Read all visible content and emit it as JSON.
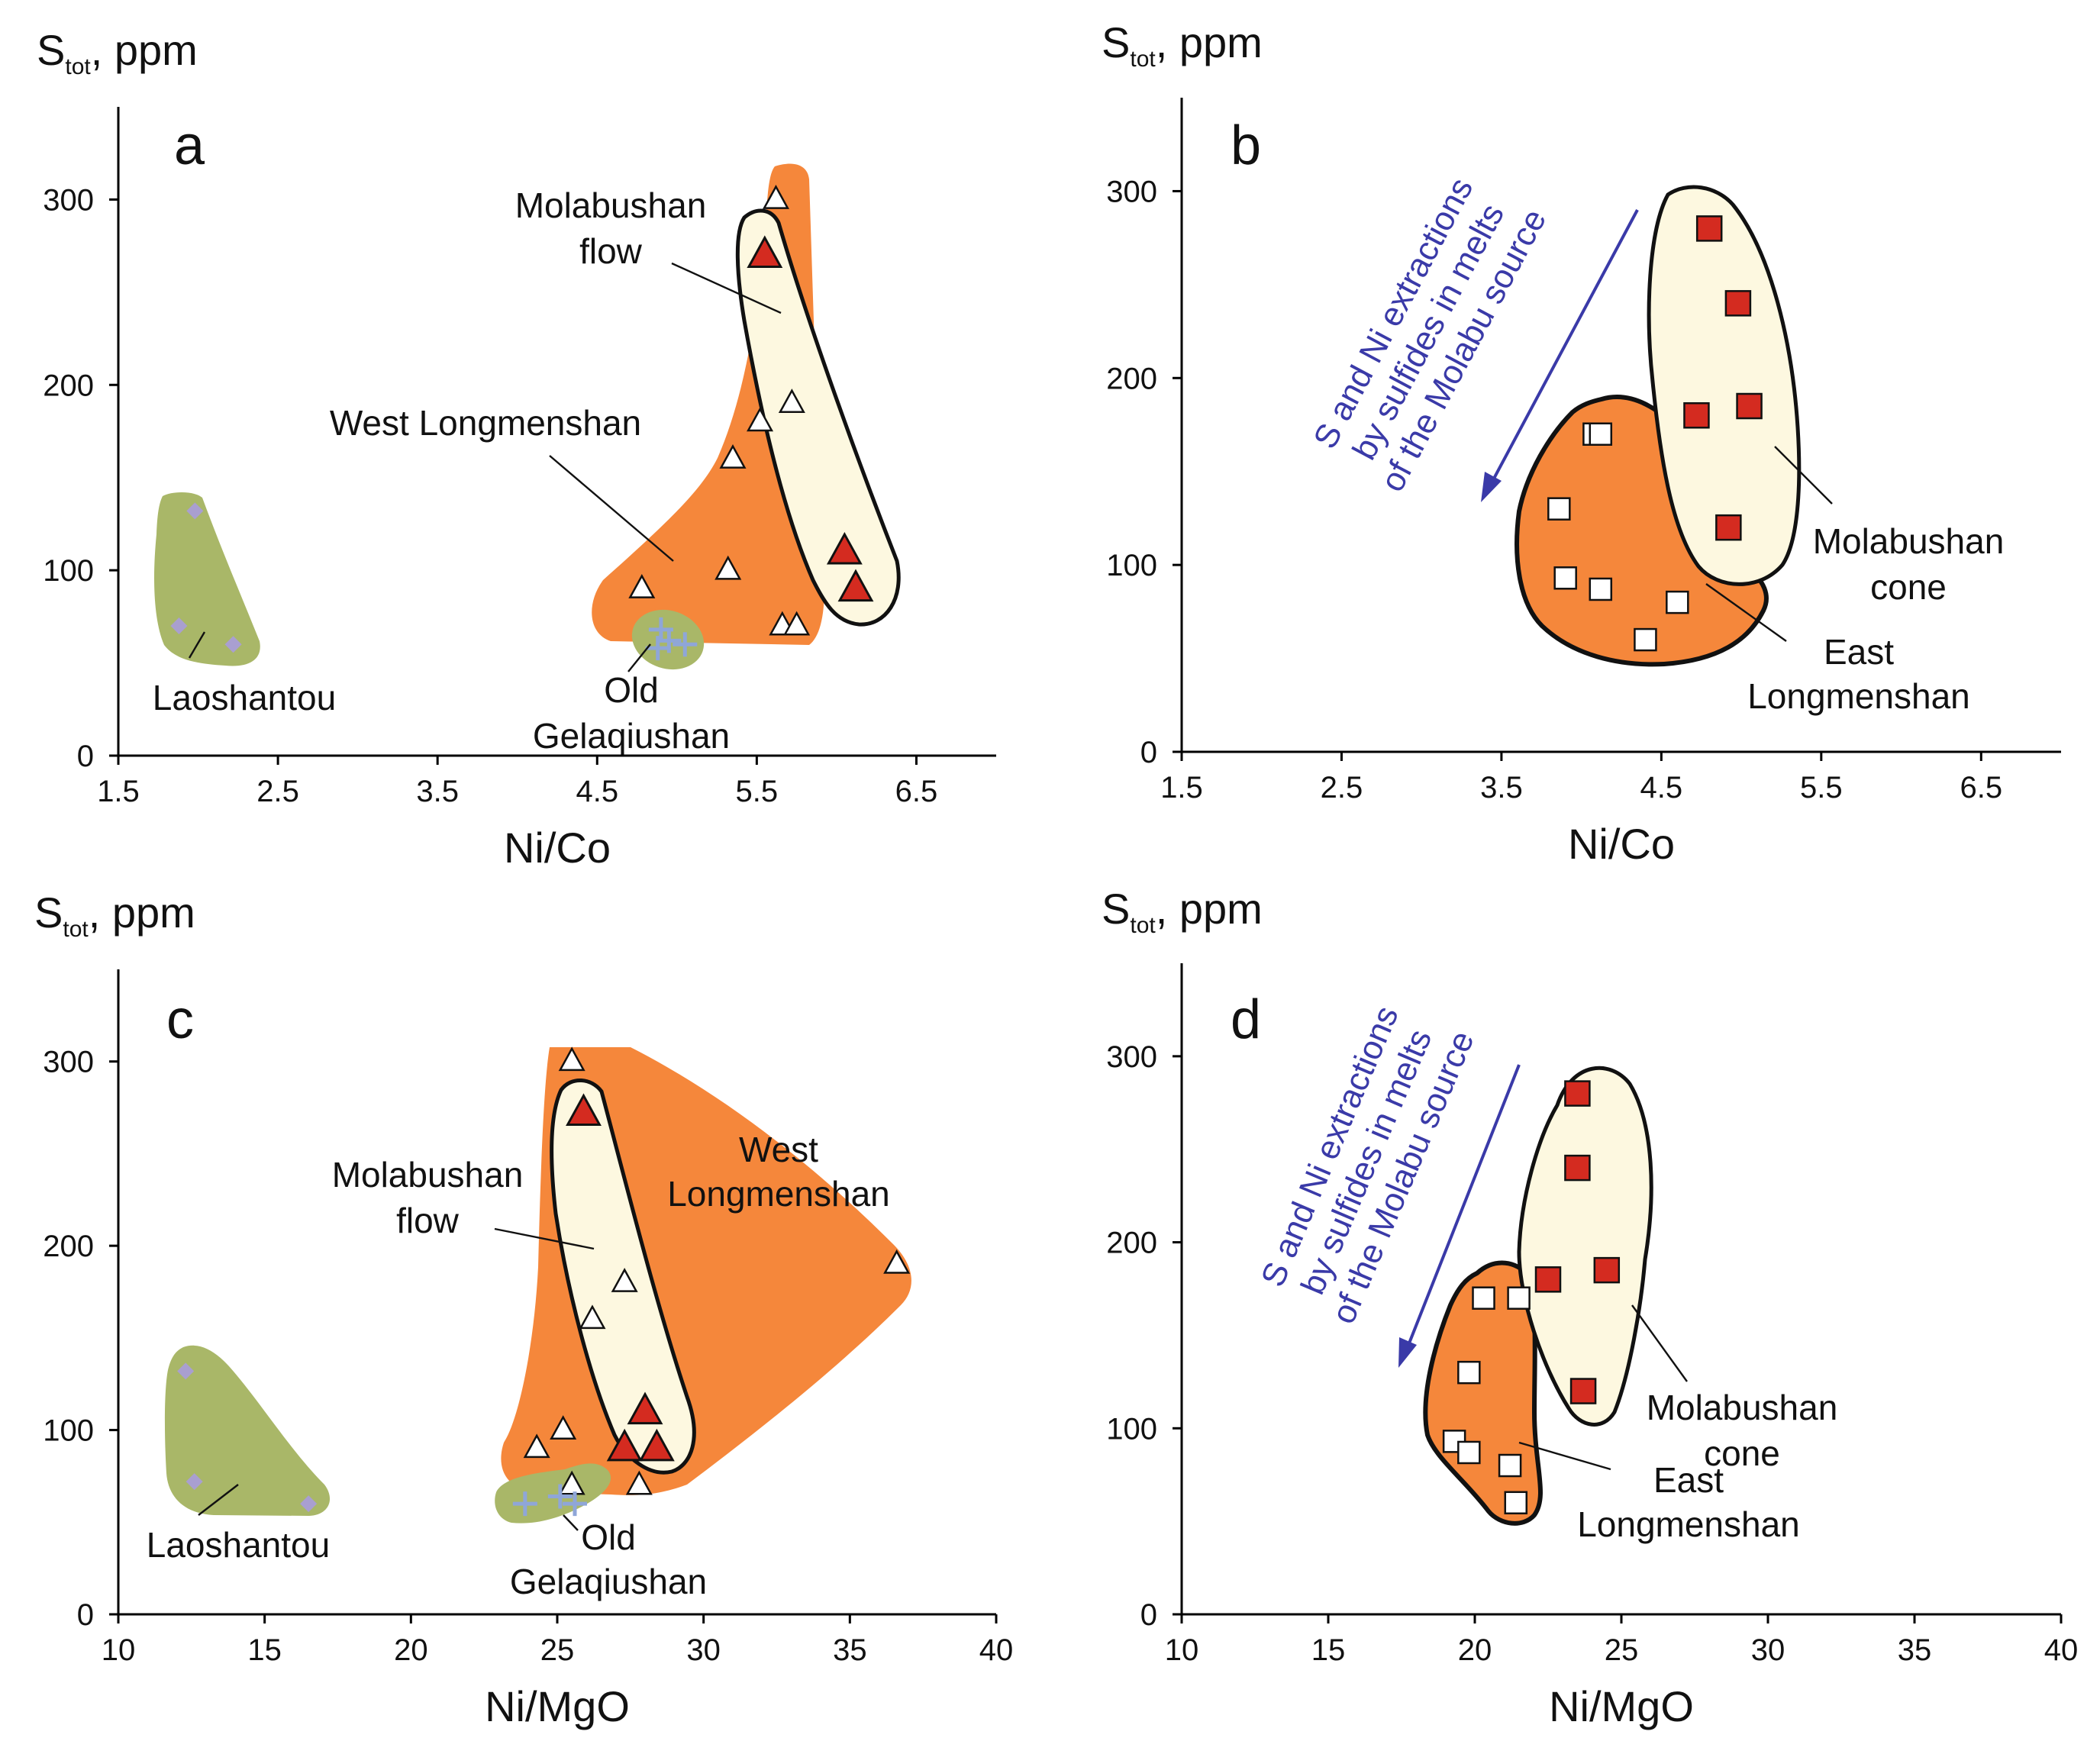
{
  "chart_data": [
    {
      "panel": "a",
      "type": "scatter",
      "ylabel_main": "S",
      "ylabel_sub": "tot",
      "ylabel_unit": ", ppm",
      "xlabel": "Ni/Co",
      "xlim": [
        1.5,
        7.0
      ],
      "ylim": [
        0,
        350
      ],
      "xticks": [
        "1.5",
        "2.5",
        "3.5",
        "4.5",
        "5.5",
        "6.5"
      ],
      "yticks": [
        "0",
        "100",
        "200",
        "300"
      ],
      "field_labels": {
        "flow": [
          "Molabushan",
          "flow"
        ],
        "west": "West Longmenshan",
        "lao": "Laoshantou",
        "old": [
          "Old",
          "Gelaqiushan"
        ]
      },
      "series": [
        {
          "name": "West Longmenshan",
          "marker": "open-triangle",
          "x": [
            5.62,
            5.72,
            5.52,
            5.35,
            4.78,
            5.32,
            5.66,
            5.75
          ],
          "y": [
            300,
            190,
            180,
            160,
            90,
            100,
            70,
            70
          ]
        },
        {
          "name": "Molabushan flow",
          "marker": "filled-triangle",
          "x": [
            5.55,
            6.05,
            6.12
          ],
          "y": [
            270,
            110,
            90
          ]
        },
        {
          "name": "Laoshantou",
          "marker": "diamond",
          "x": [
            1.98,
            1.88,
            2.22
          ],
          "y": [
            132,
            70,
            60
          ]
        },
        {
          "name": "Old Gelaqiushan",
          "marker": "plus",
          "x": [
            4.9,
            4.95,
            5.05,
            4.88
          ],
          "y": [
            68,
            62,
            60,
            58
          ]
        }
      ]
    },
    {
      "panel": "b",
      "type": "scatter",
      "ylabel_main": "S",
      "ylabel_sub": "tot",
      "ylabel_unit": ", ppm",
      "xlabel": "Ni/Co",
      "xlim": [
        1.5,
        7.0
      ],
      "ylim": [
        0,
        350
      ],
      "xticks": [
        "1.5",
        "2.5",
        "3.5",
        "4.5",
        "5.5",
        "6.5"
      ],
      "yticks": [
        "0",
        "100",
        "200",
        "300"
      ],
      "field_labels": {
        "cone": [
          "Molabushan",
          "cone"
        ],
        "east": [
          "East",
          "Longmenshan"
        ]
      },
      "arrow_text": [
        "S and Ni extractions",
        "by sulfides in melts",
        "of the Molabu source"
      ],
      "series": [
        {
          "name": "East Longmenshan",
          "marker": "open-square",
          "x": [
            4.08,
            4.12,
            3.86,
            3.9,
            4.12,
            4.6,
            4.4
          ],
          "y": [
            170,
            170,
            130,
            93,
            87,
            80,
            60
          ]
        },
        {
          "name": "Molabushan cone",
          "marker": "filled-square",
          "x": [
            4.8,
            4.98,
            4.72,
            5.05,
            4.92
          ],
          "y": [
            280,
            240,
            180,
            185,
            120
          ]
        }
      ]
    },
    {
      "panel": "c",
      "type": "scatter",
      "ylabel_main": "S",
      "ylabel_sub": "tot",
      "ylabel_unit": ", ppm",
      "xlabel": "Ni/MgO",
      "xlim": [
        10,
        40
      ],
      "ylim": [
        0,
        350
      ],
      "xticks": [
        "10",
        "15",
        "20",
        "25",
        "30",
        "35",
        "40"
      ],
      "yticks": [
        "0",
        "100",
        "200",
        "300"
      ],
      "field_labels": {
        "flow": [
          "Molabushan",
          "flow"
        ],
        "west": [
          "West",
          "Longmenshan"
        ],
        "lao": "Laoshantou",
        "old": [
          "Old",
          "Gelaqiushan"
        ]
      },
      "series": [
        {
          "name": "West Longmenshan",
          "marker": "open-triangle",
          "x": [
            25.5,
            27.3,
            26.2,
            25.2,
            24.3,
            25.5,
            27.8,
            36.6
          ],
          "y": [
            300,
            180,
            160,
            100,
            90,
            70,
            70,
            190
          ]
        },
        {
          "name": "Molabushan flow",
          "marker": "filled-triangle",
          "x": [
            25.9,
            28.0,
            27.3,
            28.4
          ],
          "y": [
            272,
            110,
            90,
            90
          ]
        },
        {
          "name": "Laoshantou",
          "marker": "diamond",
          "x": [
            12.3,
            12.6,
            16.5
          ],
          "y": [
            132,
            72,
            60
          ]
        },
        {
          "name": "Old Gelaqiushan",
          "marker": "plus",
          "x": [
            23.9,
            25.1,
            25.6
          ],
          "y": [
            60,
            64,
            60
          ]
        }
      ]
    },
    {
      "panel": "d",
      "type": "scatter",
      "ylabel_main": "S",
      "ylabel_sub": "tot",
      "ylabel_unit": ", ppm",
      "xlabel": "Ni/MgO",
      "xlim": [
        10,
        40
      ],
      "ylim": [
        0,
        350
      ],
      "xticks": [
        "10",
        "15",
        "20",
        "25",
        "30",
        "35",
        "40"
      ],
      "yticks": [
        "0",
        "100",
        "200",
        "300"
      ],
      "field_labels": {
        "cone": [
          "Molabushan",
          "cone"
        ],
        "east": [
          "East",
          "Longmenshan"
        ]
      },
      "arrow_text": [
        "S and Ni extractions",
        "by sulfides in melts",
        "of the Molabu source"
      ],
      "series": [
        {
          "name": "East Longmenshan",
          "marker": "open-square",
          "x": [
            20.3,
            21.5,
            19.8,
            19.3,
            19.8,
            21.2,
            21.4
          ],
          "y": [
            170,
            170,
            130,
            93,
            87,
            80,
            60
          ]
        },
        {
          "name": "Molabushan cone",
          "marker": "filled-square",
          "x": [
            23.5,
            23.5,
            22.5,
            24.5,
            23.7
          ],
          "y": [
            280,
            240,
            180,
            185,
            120
          ]
        }
      ]
    }
  ]
}
